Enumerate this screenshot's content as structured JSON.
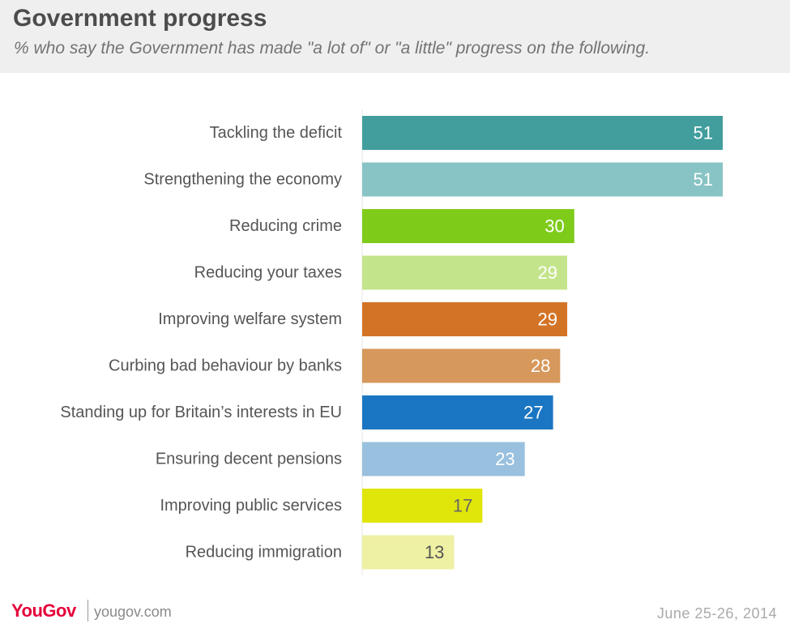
{
  "header": {
    "title": "Government progress",
    "subtitle": "% who say the Government has made \"a lot of\" or \"a little\" progress on the following."
  },
  "footer": {
    "logo": "YouGov",
    "site": "yougov.com",
    "date": "June 25-26, 2014"
  },
  "chart_data": {
    "type": "bar",
    "orientation": "horizontal",
    "title": "Government progress",
    "subtitle": "% who say the Government has made \"a lot of\" or \"a little\" progress on the following.",
    "categories": [
      "Tackling the deficit",
      "Strengthening the economy",
      "Reducing crime",
      "Reducing your taxes",
      "Improving welfare system",
      "Curbing bad behaviour by banks",
      "Standing up for Britain’s interests in EU",
      "Ensuring decent pensions",
      "Improving public services",
      "Reducing immigration"
    ],
    "values": [
      51,
      51,
      30,
      29,
      29,
      28,
      27,
      23,
      17,
      13
    ],
    "colors": [
      "#429d9d",
      "#88c4c5",
      "#7fcb1a",
      "#c4e48b",
      "#d37326",
      "#d6985b",
      "#1a76c2",
      "#99c0de",
      "#e0e50a",
      "#eef0a3"
    ],
    "label_colors": [
      "#ffffff",
      "#ffffff",
      "#ffffff",
      "#ffffff",
      "#ffffff",
      "#ffffff",
      "#ffffff",
      "#ffffff",
      "#666666",
      "#555555"
    ],
    "xlim": [
      0,
      51
    ],
    "grid": false,
    "legend": "none",
    "data_labels": true
  }
}
